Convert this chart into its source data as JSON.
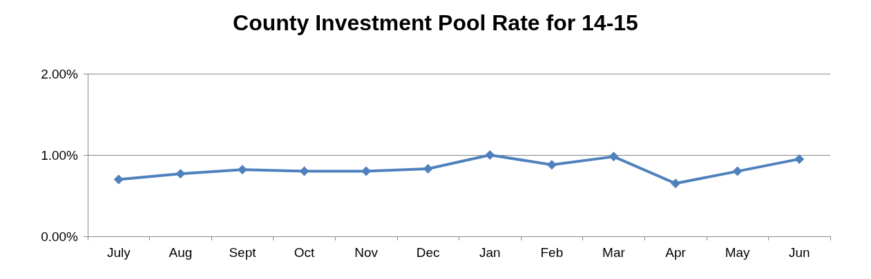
{
  "chart_data": {
    "type": "line",
    "title": "County Investment Pool Rate for 14-15",
    "categories": [
      "July",
      "Aug",
      "Sept",
      "Oct",
      "Nov",
      "Dec",
      "Jan",
      "Feb",
      "Mar",
      "Apr",
      "May",
      "Jun"
    ],
    "series": [
      {
        "color": "#4f81bd",
        "values": [
          0.7,
          0.77,
          0.82,
          0.8,
          0.8,
          0.83,
          1.0,
          0.88,
          0.98,
          0.65,
          0.8,
          0.95
        ]
      }
    ],
    "ylim": [
      0,
      2
    ],
    "yticks": [
      {
        "value": 0,
        "label": "0.00%"
      },
      {
        "value": 1,
        "label": "1.00%"
      },
      {
        "value": 2,
        "label": "2.00%"
      }
    ],
    "grid": "y",
    "marker": "diamond",
    "line_style": "solid"
  }
}
